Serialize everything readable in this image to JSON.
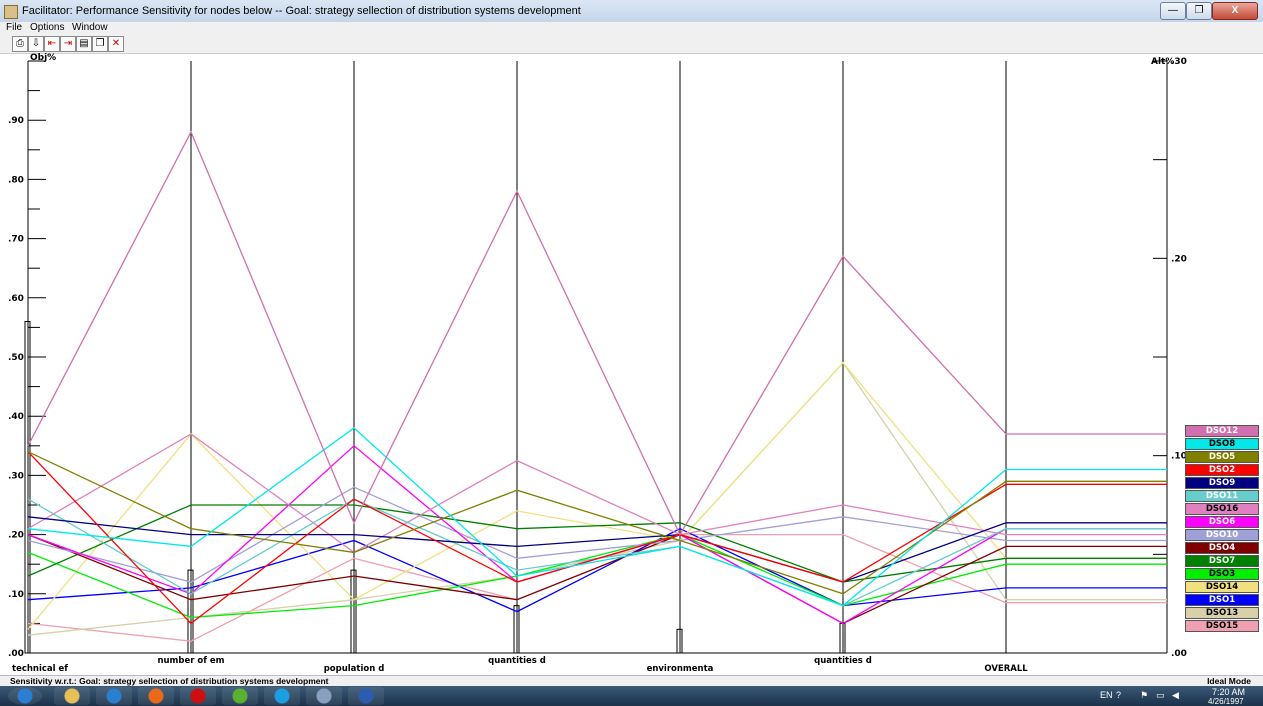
{
  "window": {
    "title": "Facilitator: Performance Sensitivity for nodes below -- Goal: strategy sellection of distribution systems development",
    "buttons": {
      "minimize": "—",
      "maximize": "❐",
      "close": "X"
    }
  },
  "menu": [
    "File",
    "Options",
    "Window"
  ],
  "toolbar": [
    "print-icon",
    "export-icon",
    "left-arrow-icon",
    "right-arrow-icon",
    "chart-icon",
    "copy-icon",
    "close-icon"
  ],
  "chart": {
    "left_axis_label": "Obj%",
    "right_axis_label": "Alt%",
    "left_ticks": [
      ".90",
      ".80",
      ".70",
      ".60",
      ".50",
      ".40",
      ".30",
      ".20",
      ".10",
      ".00"
    ],
    "right_ticks": [
      ".30",
      ".20",
      ".10",
      ".00"
    ],
    "criteria": [
      "technical ef",
      "number of em",
      "population d",
      "quantities d",
      "environmenta",
      "quantities d",
      "OVERALL"
    ]
  },
  "chart_data": {
    "type": "line",
    "left_axis": {
      "label": "Obj%",
      "ylim": [
        0,
        1.0
      ]
    },
    "right_axis": {
      "label": "Alt%",
      "ylim": [
        0,
        0.3
      ]
    },
    "x": [
      "technical ef",
      "number of em",
      "population d",
      "quantities d",
      "environmenta",
      "quantities d",
      "OVERALL"
    ],
    "objective_weights": [
      0.56,
      0.14,
      0.14,
      0.08,
      0.04,
      0.05
    ],
    "series": [
      {
        "name": "DSO12",
        "color": "#d070b0",
        "values": [
          0.35,
          0.88,
          0.22,
          0.78,
          0.2,
          0.67,
          0.37
        ]
      },
      {
        "name": "DSO8",
        "color": "#00e8e8",
        "values": [
          0.21,
          0.18,
          0.38,
          0.13,
          0.18,
          0.08,
          0.31
        ]
      },
      {
        "name": "DSO5",
        "color": "#808000",
        "values": [
          0.34,
          0.21,
          0.17,
          0.275,
          0.19,
          0.1,
          0.29
        ]
      },
      {
        "name": "DSO2",
        "color": "#ff0000",
        "values": [
          0.34,
          0.05,
          0.26,
          0.12,
          0.2,
          0.12,
          0.285
        ]
      },
      {
        "name": "DSO9",
        "color": "#000080",
        "values": [
          0.23,
          0.2,
          0.2,
          0.18,
          0.2,
          0.12,
          0.22
        ]
      },
      {
        "name": "DSO11",
        "color": "#66cccc",
        "values": [
          0.26,
          0.1,
          0.26,
          0.14,
          0.18,
          0.08,
          0.21
        ]
      },
      {
        "name": "DSO16",
        "color": "#e080c0",
        "values": [
          0.21,
          0.37,
          0.17,
          0.325,
          0.2,
          0.25,
          0.2
        ]
      },
      {
        "name": "DSO6",
        "color": "#ff00ff",
        "values": [
          0.2,
          0.1,
          0.35,
          0.12,
          0.2,
          0.05,
          0.21
        ]
      },
      {
        "name": "DSO10",
        "color": "#a0a0d8",
        "values": [
          0.19,
          0.12,
          0.28,
          0.16,
          0.19,
          0.23,
          0.19
        ]
      },
      {
        "name": "DSO4",
        "color": "#800000",
        "values": [
          0.2,
          0.09,
          0.13,
          0.09,
          0.2,
          0.05,
          0.18
        ]
      },
      {
        "name": "DSO7",
        "color": "#008000",
        "values": [
          0.13,
          0.25,
          0.25,
          0.21,
          0.22,
          0.12,
          0.16
        ]
      },
      {
        "name": "DSO3",
        "color": "#00ee00",
        "values": [
          0.17,
          0.06,
          0.08,
          0.13,
          0.2,
          0.08,
          0.15
        ]
      },
      {
        "name": "DSO14",
        "color": "#f0e080",
        "values": [
          0.04,
          0.37,
          0.09,
          0.24,
          0.19,
          0.49,
          0.16
        ]
      },
      {
        "name": "DSO1",
        "color": "#0000ff",
        "values": [
          0.09,
          0.11,
          0.19,
          0.07,
          0.21,
          0.08,
          0.11
        ]
      },
      {
        "name": "DSO13",
        "color": "#d8d0a8",
        "values": [
          0.03,
          0.06,
          0.09,
          0.13,
          0.19,
          0.49,
          0.09
        ]
      },
      {
        "name": "DSO15",
        "color": "#f0a0b0",
        "values": [
          0.05,
          0.02,
          0.16,
          0.09,
          0.2,
          0.2,
          0.085
        ]
      }
    ]
  },
  "legend": [
    {
      "name": "DSO12",
      "bg": "#d070b0",
      "fg": "#ffffff"
    },
    {
      "name": "DSO8",
      "bg": "#00e8e8",
      "fg": "#000000"
    },
    {
      "name": "DSO5",
      "bg": "#808000",
      "fg": "#ffffff"
    },
    {
      "name": "DSO2",
      "bg": "#ff0000",
      "fg": "#ffffff"
    },
    {
      "name": "DSO9",
      "bg": "#000080",
      "fg": "#ffffff"
    },
    {
      "name": "DSO11",
      "bg": "#66cccc",
      "fg": "#ffffff"
    },
    {
      "name": "DSO16",
      "bg": "#e080c0",
      "fg": "#000000"
    },
    {
      "name": "DSO6",
      "bg": "#ff00ff",
      "fg": "#ffffff"
    },
    {
      "name": "DSO10",
      "bg": "#a0a0d8",
      "fg": "#ffffff"
    },
    {
      "name": "DSO4",
      "bg": "#800000",
      "fg": "#ffffff"
    },
    {
      "name": "DSO7",
      "bg": "#008000",
      "fg": "#ffffff"
    },
    {
      "name": "DSO3",
      "bg": "#00ee00",
      "fg": "#000000"
    },
    {
      "name": "DSO14",
      "bg": "#f0e080",
      "fg": "#000000"
    },
    {
      "name": "DSO1",
      "bg": "#0000ff",
      "fg": "#ffffff"
    },
    {
      "name": "DSO13",
      "bg": "#d8d0a8",
      "fg": "#000000"
    },
    {
      "name": "DSO15",
      "bg": "#f0a0b0",
      "fg": "#000000"
    }
  ],
  "status": {
    "left": "Sensitivity w.r.t.: Goal: strategy sellection of distribution systems development",
    "right": "Ideal Mode"
  },
  "taskbar": {
    "apps": [
      {
        "name": "start-button",
        "color": "#2a7fd0"
      },
      {
        "name": "explorer-icon",
        "color": "#e8c05a"
      },
      {
        "name": "media-player-icon",
        "color": "#2a80d0"
      },
      {
        "name": "firefox-icon",
        "color": "#e86a1a"
      },
      {
        "name": "opera-icon",
        "color": "#cc1010"
      },
      {
        "name": "utorrent-icon",
        "color": "#5ab030"
      },
      {
        "name": "skype-icon",
        "color": "#1aa0e0"
      },
      {
        "name": "facilitator-icon",
        "color": "#8aa0c0"
      },
      {
        "name": "word-icon",
        "color": "#2b5cb0"
      }
    ],
    "language": "EN",
    "time": "7:20 AM",
    "date": "4/26/1997"
  }
}
